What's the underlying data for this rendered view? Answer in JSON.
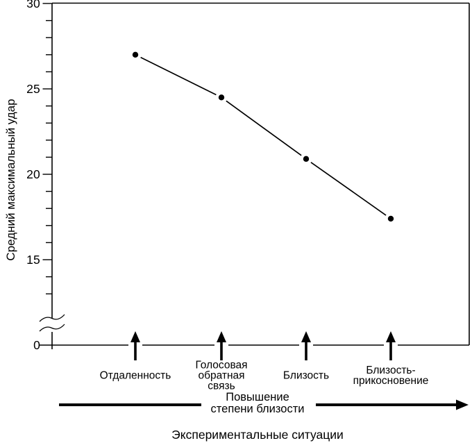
{
  "figure": {
    "trend_caption_lines": [
      "Повышение",
      "степени близости"
    ],
    "xlabel": "Экспериментальные ситуации",
    "ylabel": "Средний максимальный удар"
  },
  "chart_data": {
    "type": "line",
    "title": "",
    "xlabel": "Экспериментальные ситуации",
    "ylabel": "Средний максимальный удар",
    "categories": [
      "Отдаленность",
      "Голосовая обратная связь",
      "Близость",
      "Близость-прикосновение"
    ],
    "category_lines": [
      [
        "Отдаленность"
      ],
      [
        "Голосовая",
        "обратная",
        "связь"
      ],
      [
        "Близость"
      ],
      [
        "Близость-",
        "прикосновение"
      ]
    ],
    "values": [
      27,
      24.5,
      20.9,
      17.4
    ],
    "ylim": [
      0,
      30
    ],
    "y_major_ticks": [
      30,
      25,
      20,
      15,
      0
    ],
    "y_minor_tick_step": 1,
    "y_minor_tick_range": [
      13,
      30
    ],
    "axis_break": {
      "present": true,
      "between": [
        0,
        13
      ]
    },
    "grid": false,
    "legend": false,
    "marker": "filled-circle",
    "line_color": "#000000",
    "background": "#ffffff",
    "category_arrows": "up",
    "trend_annotation": {
      "text": "Повышение степени близости",
      "direction": "right"
    }
  }
}
